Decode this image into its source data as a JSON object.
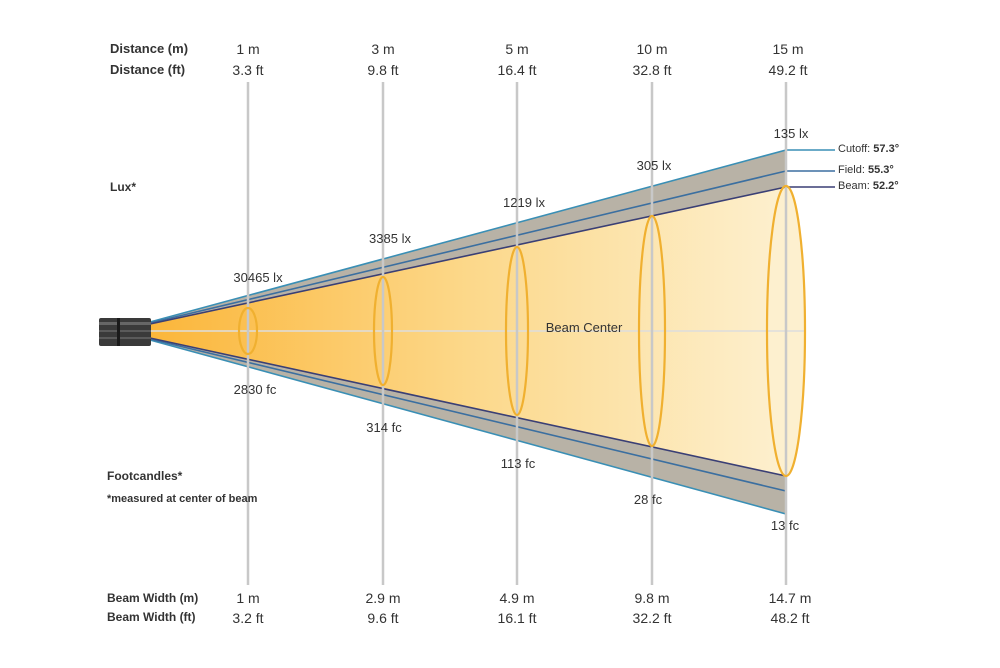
{
  "row_labels": {
    "distance_m": "Distance (m)",
    "distance_ft": "Distance (ft)",
    "lux": "Lux*",
    "footcandles": "Footcandles*",
    "footnote": "*measured at center of beam",
    "beam_width_m": "Beam Width (m)",
    "beam_width_ft": "Beam Width (ft)"
  },
  "beam_center_label": "Beam Center",
  "columns": [
    {
      "distance_m": "1 m",
      "distance_ft": "3.3 ft",
      "lux": "30465 lx",
      "fc": "2830 fc",
      "width_m": "1 m",
      "width_ft": "3.2 ft"
    },
    {
      "distance_m": "3 m",
      "distance_ft": "9.8 ft",
      "lux": "3385 lx",
      "fc": "314 fc",
      "width_m": "2.9 m",
      "width_ft": "9.6 ft"
    },
    {
      "distance_m": "5 m",
      "distance_ft": "16.4 ft",
      "lux": "1219 lx",
      "fc": "113 fc",
      "width_m": "4.9 m",
      "width_ft": "16.1 ft"
    },
    {
      "distance_m": "10 m",
      "distance_ft": "32.8 ft",
      "lux": "305 lx",
      "fc": "28 fc",
      "width_m": "9.8 m",
      "width_ft": "32.2 ft"
    },
    {
      "distance_m": "15 m",
      "distance_ft": "49.2 ft",
      "lux": "135 lx",
      "fc": "13 fc",
      "width_m": "14.7 m",
      "width_ft": "48.2 ft"
    }
  ],
  "angles": [
    {
      "label": "Cutoff:",
      "value": "57.3°",
      "color": "#3a8fb5"
    },
    {
      "label": "Field:",
      "value": "55.3°",
      "color": "#3b6fa0"
    },
    {
      "label": "Beam:",
      "value": "52.2°",
      "color": "#3a3f75"
    }
  ],
  "colors": {
    "beam_fill": "#fbc150",
    "spill_fill": "#b8b2a6",
    "ring": "#f0b030",
    "guide": "#c8c8c8"
  }
}
